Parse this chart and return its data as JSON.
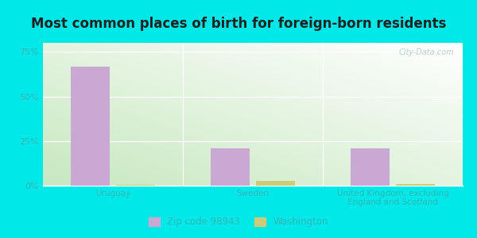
{
  "title": "Most common places of birth for foreign-born residents",
  "categories": [
    "Uruguay",
    "Sweden",
    "United Kingdom, excluding\nEngland and Scotland"
  ],
  "zip_values": [
    0.667,
    0.211,
    0.208
  ],
  "wa_values": [
    0.003,
    0.025,
    0.01
  ],
  "zip_color": "#c9a8d4",
  "wa_color": "#cccb7a",
  "bar_width": 0.28,
  "ylim": [
    0,
    0.8
  ],
  "yticks": [
    0.0,
    0.25,
    0.5,
    0.75
  ],
  "yticklabels": [
    "0%",
    "25%",
    "50%",
    "75%"
  ],
  "xlabel_color": "#2ab8b8",
  "tick_color": "#2ab8b8",
  "background_color_top_left": "#c8e8c0",
  "background_color_bottom_right": "#f0fff0",
  "outer_background": "#00e8e8",
  "title_fontsize": 12,
  "title_color": "#222222",
  "legend_label_zip": "Zip code 98943",
  "legend_label_wa": "Washington",
  "watermark": "City-Data.com"
}
